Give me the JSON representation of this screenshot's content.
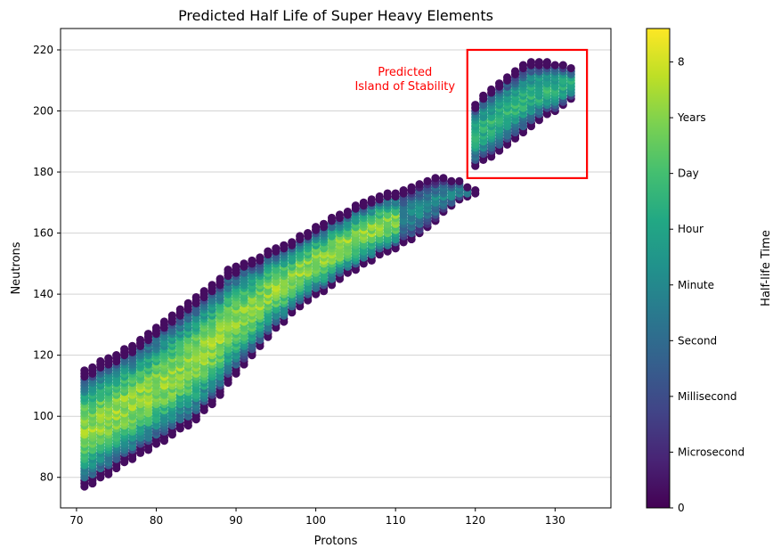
{
  "chart_data": {
    "type": "scatter",
    "title": "Predicted Half Life of Super Heavy Elements",
    "xlabel": "Protons",
    "ylabel": "Neutrons",
    "xlim": [
      68,
      137
    ],
    "ylim": [
      70,
      227
    ],
    "x_ticks": [
      70,
      80,
      90,
      100,
      110,
      120,
      130
    ],
    "y_ticks": [
      80,
      100,
      120,
      140,
      160,
      180,
      200,
      220
    ],
    "grid": "horizontal",
    "colormap": "viridis",
    "colorbar": {
      "label": "Half-life Time",
      "range": [
        0,
        8.6
      ],
      "ticks": [
        {
          "value": 0,
          "label": "0"
        },
        {
          "value": 1,
          "label": "Microsecond"
        },
        {
          "value": 2,
          "label": "Millisecond"
        },
        {
          "value": 3,
          "label": "Second"
        },
        {
          "value": 4,
          "label": "Minute"
        },
        {
          "value": 5,
          "label": "Hour"
        },
        {
          "value": 6,
          "label": "Day"
        },
        {
          "value": 7,
          "label": "Years"
        },
        {
          "value": 8,
          "label": "8"
        }
      ]
    },
    "annotation": {
      "text_line1": "Predicted",
      "text_line2": "Island of Stability",
      "color": "#ff0000",
      "box_x": [
        119,
        134
      ],
      "box_y": [
        178,
        220
      ]
    },
    "bands": [
      {
        "x": [
          71,
          120
        ],
        "n_low": [
          77,
          80,
          84,
          88,
          91,
          95,
          99,
          105,
          113,
          120,
          127,
          133,
          138,
          142,
          146,
          150,
          153,
          156,
          160,
          165,
          171,
          173
        ],
        "n_high": [
          115,
          118,
          121,
          125,
          130,
          134,
          139,
          144,
          149,
          151,
          154,
          157,
          160,
          164,
          167,
          170,
          172,
          174,
          176,
          178,
          177,
          174
        ]
      },
      {
        "x": [
          120,
          132
        ],
        "n_low": [
          182,
          185,
          189,
          193,
          197,
          200,
          204
        ],
        "n_high": [
          202,
          207,
          211,
          215,
          216,
          215,
          214
        ]
      }
    ]
  }
}
